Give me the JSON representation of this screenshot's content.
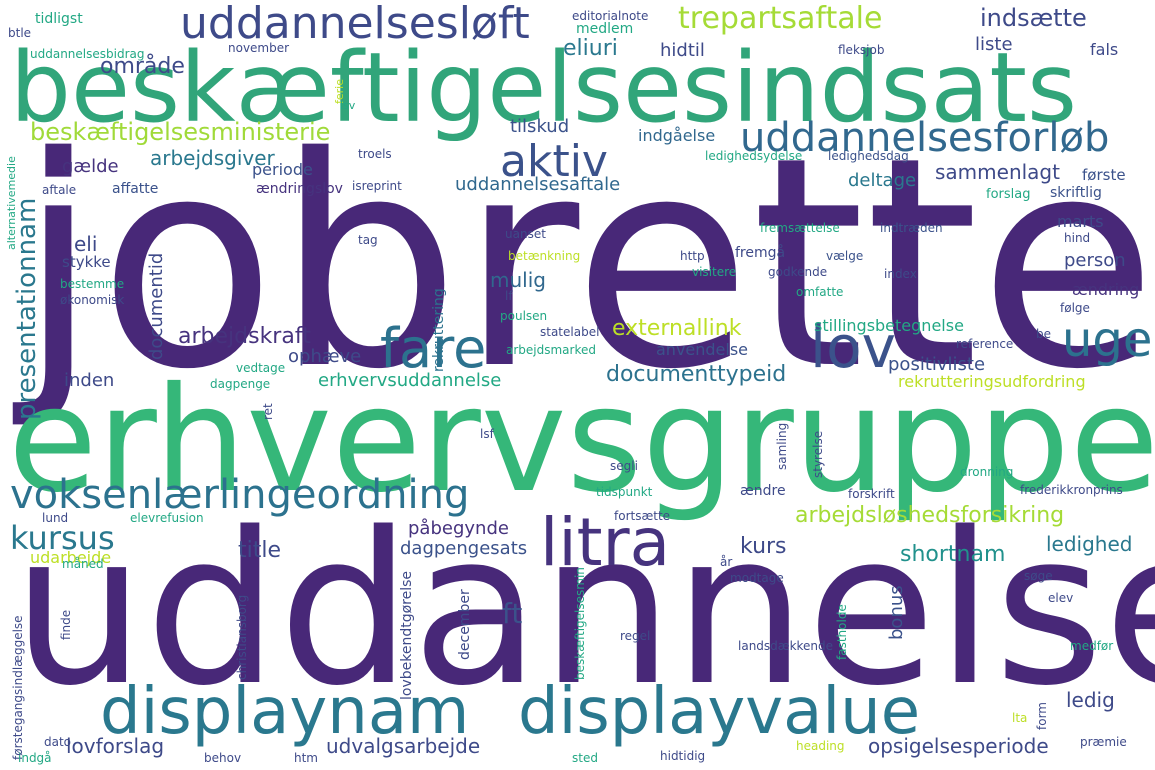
{
  "words": [
    {
      "text": "jobrette",
      "color": "#482878"
    },
    {
      "text": "uddannelse",
      "color": "#482878"
    },
    {
      "text": "erhvervsgruppe",
      "color": "#35b779"
    },
    {
      "text": "beskæftigelsesindsats",
      "color": "#31a57a"
    },
    {
      "text": "displaynam",
      "color": "#2a788e"
    },
    {
      "text": "displayvalue",
      "color": "#2a788e"
    },
    {
      "text": "litra",
      "color": "#46337e"
    },
    {
      "text": "uddannelsesløft",
      "color": "#3e4a89"
    },
    {
      "text": "voksenlærlingeordning",
      "color": "#2c728e"
    },
    {
      "text": "uddannelsesforløb",
      "color": "#31688e"
    },
    {
      "text": "fare",
      "color": "#2c728e"
    },
    {
      "text": "lov",
      "color": "#3b528b"
    },
    {
      "text": "uge",
      "color": "#2c728e"
    },
    {
      "text": "aktiv",
      "color": "#3b528b"
    },
    {
      "text": "trepartsaftale",
      "color": "#a5db36"
    },
    {
      "text": "beskæftigelsesministerie",
      "color": "#a0da39"
    },
    {
      "text": "kursus",
      "color": "#2a788e"
    },
    {
      "text": "indsætte",
      "color": "#3e4a89"
    },
    {
      "text": "eliuri",
      "color": "#2a788e"
    },
    {
      "text": "område",
      "color": "#3e4a89"
    },
    {
      "text": "hidtil",
      "color": "#3e4a89"
    },
    {
      "text": "liste",
      "color": "#3e4a89"
    },
    {
      "text": "fals",
      "color": "#3e4a89"
    },
    {
      "text": "tilskud",
      "color": "#3b528b"
    },
    {
      "text": "indgåelse",
      "color": "#31688e"
    },
    {
      "text": "arbejdsgiver",
      "color": "#2a788e"
    },
    {
      "text": "gælde",
      "color": "#46337e"
    },
    {
      "text": "periode",
      "color": "#3b528b"
    },
    {
      "text": "uddannelsesaftale",
      "color": "#31688e"
    },
    {
      "text": "sammenlagt",
      "color": "#3e4a89"
    },
    {
      "text": "første",
      "color": "#3b528b"
    },
    {
      "text": "skriftlig",
      "color": "#3b528b"
    },
    {
      "text": "forslag",
      "color": "#22a884"
    },
    {
      "text": "deltage",
      "color": "#2a788e"
    },
    {
      "text": "presentationnam",
      "color": "#2a788e"
    },
    {
      "text": "documentid",
      "color": "#3e4a89"
    },
    {
      "text": "eli",
      "color": "#3e4a89"
    },
    {
      "text": "stykke",
      "color": "#3e4a89"
    },
    {
      "text": "mulig",
      "color": "#31688e"
    },
    {
      "text": "arbejdskraft",
      "color": "#46337e"
    },
    {
      "text": "externallink",
      "color": "#bddf26"
    },
    {
      "text": "documenttypeid",
      "color": "#2c728e"
    },
    {
      "text": "inden",
      "color": "#3e4a89"
    },
    {
      "text": "ophæve",
      "color": "#3e4a89"
    },
    {
      "text": "erhvervsuddannelse",
      "color": "#22a884"
    },
    {
      "text": "anvendelse",
      "color": "#3b528b"
    },
    {
      "text": "positivliste",
      "color": "#3b528b"
    },
    {
      "text": "rekrutteringsudfordring",
      "color": "#bddf26"
    },
    {
      "text": "person",
      "color": "#3e4a89"
    },
    {
      "text": "ændring",
      "color": "#46337e"
    },
    {
      "text": "stillingsbetegnelse",
      "color": "#22a884"
    },
    {
      "text": "arbejdsløshedsforsikring",
      "color": "#a5db36"
    },
    {
      "text": "påbegynde",
      "color": "#46337e"
    },
    {
      "text": "title",
      "color": "#3e4a89"
    },
    {
      "text": "dagpengesats",
      "color": "#3b528b"
    },
    {
      "text": "kurs",
      "color": "#3e4a89"
    },
    {
      "text": "shortnam",
      "color": "#21918c"
    },
    {
      "text": "ledighed",
      "color": "#2a788e"
    },
    {
      "text": "udarbejde",
      "color": "#bddf26"
    },
    {
      "text": "ft",
      "color": "#3b528b"
    },
    {
      "text": "bonus",
      "color": "#3b528b"
    },
    {
      "text": "lovforslag",
      "color": "#3e4a89"
    },
    {
      "text": "udvalgsarbejde",
      "color": "#3e4a89"
    },
    {
      "text": "opsigelsesperiode",
      "color": "#3e4a89"
    },
    {
      "text": "ledig",
      "color": "#3e4a89"
    },
    {
      "text": "fremgå",
      "color": "#3e4a89"
    },
    {
      "text": "marts",
      "color": "#3e4a89"
    },
    {
      "text": "tidligst",
      "color": "#22a884"
    },
    {
      "text": "btle",
      "color": "#3e4a89"
    },
    {
      "text": "uddannelsesbidrag",
      "color": "#22a884"
    },
    {
      "text": "editorialnote",
      "color": "#3e4a89"
    },
    {
      "text": "medlem",
      "color": "#22a884"
    },
    {
      "text": "november",
      "color": "#3e4a89"
    },
    {
      "text": "fleksjob",
      "color": "#3e4a89"
    },
    {
      "text": "ledighedsydelse",
      "color": "#22a884"
    },
    {
      "text": "ledighedsdag",
      "color": "#3b528b"
    },
    {
      "text": "affatte",
      "color": "#3b528b"
    },
    {
      "text": "aftale",
      "color": "#3e4a89"
    },
    {
      "text": "ændringslov",
      "color": "#46337e"
    },
    {
      "text": "isreprint",
      "color": "#3e4a89"
    },
    {
      "text": "troels",
      "color": "#3e4a89"
    },
    {
      "text": "tag",
      "color": "#3e4a89"
    },
    {
      "text": "uanset",
      "color": "#3e4a89"
    },
    {
      "text": "http",
      "color": "#3e4a89"
    },
    {
      "text": "fremsættelse",
      "color": "#22a884"
    },
    {
      "text": "indtræden",
      "color": "#3b528b"
    },
    {
      "text": "vælge",
      "color": "#3b528b"
    },
    {
      "text": "godkende",
      "color": "#3e4a89"
    },
    {
      "text": "index",
      "color": "#3e4a89"
    },
    {
      "text": "omfatte",
      "color": "#22a884"
    },
    {
      "text": "følge",
      "color": "#3e4a89"
    },
    {
      "text": "hind",
      "color": "#3e4a89"
    },
    {
      "text": "visitere",
      "color": "#22a884"
    },
    {
      "text": "betænkning",
      "color": "#bddf26"
    },
    {
      "text": "rekruttering",
      "color": "#2c728e"
    },
    {
      "text": "bestemme",
      "color": "#22a884"
    },
    {
      "text": "økonomisk",
      "color": "#3e4a89"
    },
    {
      "text": "poulsen",
      "color": "#22a884"
    },
    {
      "text": "lf",
      "color": "#3e4a89"
    },
    {
      "text": "statelabel",
      "color": "#3e4a89"
    },
    {
      "text": "arbejdsmarked",
      "color": "#22a884"
    },
    {
      "text": "reference",
      "color": "#3e4a89"
    },
    {
      "text": "be",
      "color": "#3e4a89"
    },
    {
      "text": "vedtage",
      "color": "#22a884"
    },
    {
      "text": "dagpenge",
      "color": "#22a884"
    },
    {
      "text": "ret",
      "color": "#3e4a89"
    },
    {
      "text": "lsf",
      "color": "#3e4a89"
    },
    {
      "text": "samling",
      "color": "#3e4a89"
    },
    {
      "text": "styrelse",
      "color": "#3e4a89"
    },
    {
      "text": "segli",
      "color": "#3e4a89"
    },
    {
      "text": "tidspunkt",
      "color": "#22a884"
    },
    {
      "text": "ændre",
      "color": "#3e4a89"
    },
    {
      "text": "forskrift",
      "color": "#3e4a89"
    },
    {
      "text": "dronning",
      "color": "#22a884"
    },
    {
      "text": "frederikkronprins",
      "color": "#3e4a89"
    },
    {
      "text": "fortsætte",
      "color": "#3e4a89"
    },
    {
      "text": "år",
      "color": "#3e4a89"
    },
    {
      "text": "modtage",
      "color": "#3e4a89"
    },
    {
      "text": "søge",
      "color": "#3e4a89"
    },
    {
      "text": "elev",
      "color": "#3e4a89"
    },
    {
      "text": "lund",
      "color": "#3e4a89"
    },
    {
      "text": "elevrefusion",
      "color": "#22a884"
    },
    {
      "text": "måned",
      "color": "#22a884"
    },
    {
      "text": "christiansborg",
      "color": "#3e4a89"
    },
    {
      "text": "december",
      "color": "#3e4a89"
    },
    {
      "text": "fastholde",
      "color": "#22a884"
    },
    {
      "text": "finde",
      "color": "#3e4a89"
    },
    {
      "text": "regel",
      "color": "#3e4a89"
    },
    {
      "text": "lovbekendtgørelse",
      "color": "#3e4a89"
    },
    {
      "text": "beskæftigelsesmin",
      "color": "#22a884"
    },
    {
      "text": "landsdækkende",
      "color": "#3e4a89"
    },
    {
      "text": "medfør",
      "color": "#22a884"
    },
    {
      "text": "førstegangsindlæggelse",
      "color": "#3e4a89"
    },
    {
      "text": "dato",
      "color": "#3e4a89"
    },
    {
      "text": "indgå",
      "color": "#22a884"
    },
    {
      "text": "behov",
      "color": "#3e4a89"
    },
    {
      "text": "htm",
      "color": "#3e4a89"
    },
    {
      "text": "sted",
      "color": "#22a884"
    },
    {
      "text": "hidtidig",
      "color": "#3e4a89"
    },
    {
      "text": "heading",
      "color": "#bddf26"
    },
    {
      "text": "lta",
      "color": "#bddf26"
    },
    {
      "text": "form",
      "color": "#3e4a89"
    },
    {
      "text": "præmie",
      "color": "#3e4a89"
    },
    {
      "text": "alternativemedie",
      "color": "#22a884"
    },
    {
      "text": "ferie",
      "color": "#bddf26"
    },
    {
      "text": "lsv",
      "color": "#22a884"
    }
  ]
}
